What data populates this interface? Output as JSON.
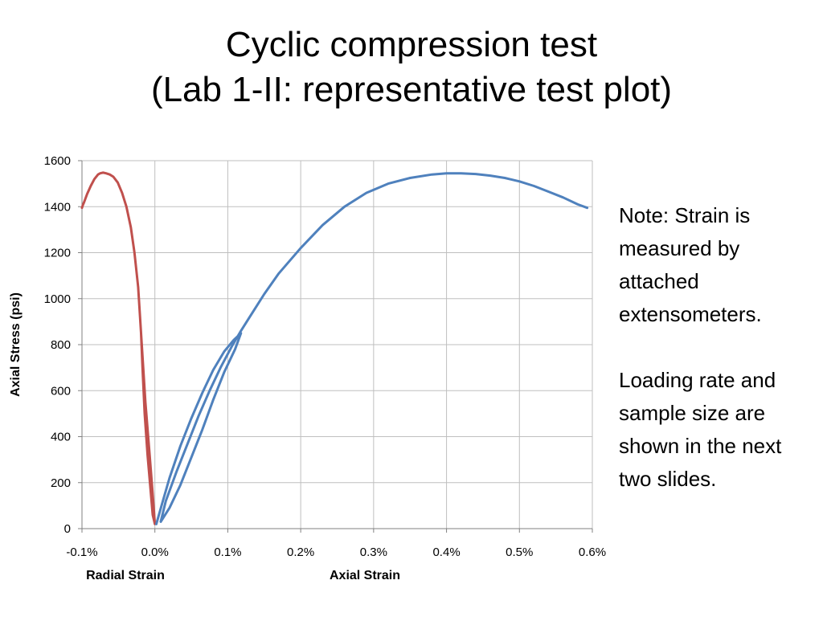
{
  "slide": {
    "title_line1": "Cyclic compression test",
    "title_line2": "(Lab 1-II: representative test plot)"
  },
  "note": {
    "paragraph1": "Note: Strain is measured by attached extensometers.",
    "paragraph2": "Loading rate and sample size are shown in the next two slides."
  },
  "chart_data": {
    "type": "line",
    "title": "",
    "ylabel": "Axial Stress (psi)",
    "xlabels": [
      "Radial Strain",
      "Axial Strain"
    ],
    "xlim": [
      -0.1,
      0.6
    ],
    "ylim": [
      0,
      1600
    ],
    "x_unit": "%",
    "x_ticks": [
      -0.1,
      0.0,
      0.1,
      0.2,
      0.3,
      0.4,
      0.5,
      0.6
    ],
    "x_tick_labels": [
      "-0.1%",
      "0.0%",
      "0.1%",
      "0.2%",
      "0.3%",
      "0.4%",
      "0.5%",
      "0.6%"
    ],
    "y_ticks": [
      0,
      200,
      400,
      600,
      800,
      1000,
      1200,
      1400,
      1600
    ],
    "y_tick_labels": [
      "0",
      "200",
      "400",
      "600",
      "800",
      "1000",
      "1200",
      "1400",
      "1600"
    ],
    "grid": true,
    "legend": "none",
    "series": [
      {
        "color": "#c0504d",
        "x": [
          0.0,
          -0.003,
          -0.008,
          -0.013,
          -0.017,
          -0.019,
          -0.017,
          -0.014,
          -0.01,
          -0.006,
          -0.003,
          0.0,
          -0.006,
          -0.012,
          -0.018,
          -0.023,
          -0.028,
          -0.033,
          -0.039,
          -0.045,
          -0.051,
          -0.057,
          -0.062,
          -0.067,
          -0.071,
          -0.075,
          -0.078,
          -0.083,
          -0.088,
          -0.093,
          -0.097,
          -0.099,
          -0.1
        ],
        "y": [
          20,
          150,
          350,
          550,
          720,
          850,
          700,
          500,
          320,
          170,
          60,
          20,
          200,
          500,
          800,
          1050,
          1200,
          1310,
          1400,
          1460,
          1505,
          1530,
          1540,
          1545,
          1548,
          1545,
          1540,
          1520,
          1490,
          1455,
          1420,
          1405,
          1395
        ]
      },
      {
        "color": "#4f81bd",
        "x": [
          0.002,
          0.01,
          0.02,
          0.035,
          0.05,
          0.065,
          0.08,
          0.095,
          0.108,
          0.118,
          0.11,
          0.095,
          0.08,
          0.065,
          0.05,
          0.035,
          0.02,
          0.008,
          0.015,
          0.03,
          0.045,
          0.06,
          0.075,
          0.09,
          0.105,
          0.118,
          0.13,
          0.15,
          0.17,
          0.2,
          0.23,
          0.26,
          0.29,
          0.32,
          0.35,
          0.38,
          0.4,
          0.42,
          0.44,
          0.46,
          0.48,
          0.5,
          0.52,
          0.54,
          0.56,
          0.58,
          0.593
        ],
        "y": [
          20,
          110,
          220,
          360,
          480,
          590,
          690,
          770,
          820,
          850,
          780,
          680,
          560,
          430,
          310,
          190,
          90,
          30,
          120,
          250,
          370,
          490,
          600,
          700,
          790,
          860,
          920,
          1020,
          1110,
          1220,
          1320,
          1400,
          1460,
          1500,
          1525,
          1540,
          1545,
          1545,
          1542,
          1535,
          1525,
          1510,
          1490,
          1465,
          1440,
          1410,
          1395
        ]
      }
    ]
  }
}
